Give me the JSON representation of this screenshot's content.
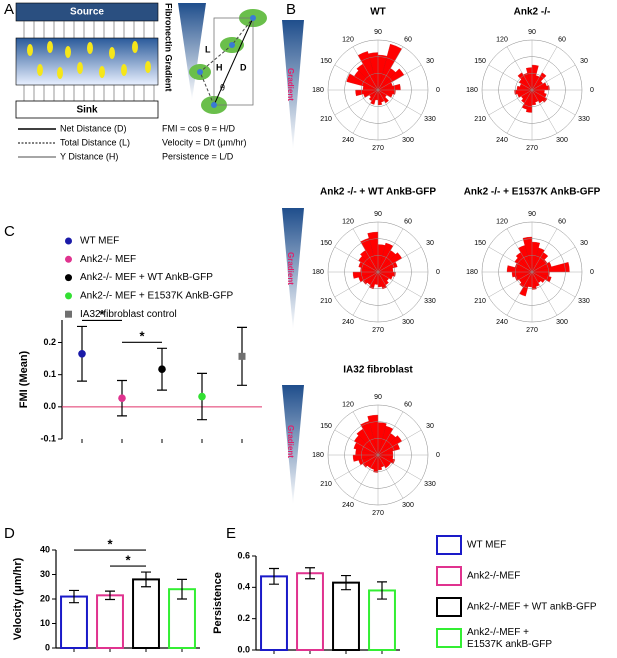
{
  "panel_labels": [
    "A",
    "B",
    "C",
    "D",
    "E"
  ],
  "diagram": {
    "source": "Source",
    "sink": "Sink",
    "gradient_label": "Fibronectin Gradient",
    "path_labels": [
      "L",
      "H",
      "D",
      "θ"
    ],
    "legend": [
      "Net Distance (D)",
      "Total Distance (L)",
      "Y Distance (H)"
    ],
    "formulas": [
      "FMI = cos θ = H/D",
      "Velocity = D/t (μm/hr)",
      "Persistence = L/D"
    ]
  },
  "gradient_labels": [
    "Gradient",
    "Gradient",
    "Gradient"
  ],
  "chart_data": [
    {
      "type": "rose",
      "title": "WT",
      "color": "#ff0000",
      "rlim": [
        0,
        1
      ],
      "thetaticks": [
        0,
        30,
        60,
        90,
        120,
        150,
        180,
        210,
        240,
        270,
        300,
        330
      ],
      "values": [
        0.45,
        0.3,
        0.6,
        0.5,
        0.95,
        0.7,
        0.75,
        0.8,
        0.6,
        0.55,
        0.65,
        0.3,
        0.45,
        0.3,
        0.2,
        0.25,
        0.3,
        0.2,
        0.3,
        0.25,
        0.3,
        0.2,
        0.3,
        0.35
      ]
    },
    {
      "type": "rose",
      "title": "Ank2 -/-",
      "color": "#ff0000",
      "rlim": [
        0,
        1
      ],
      "thetaticks": [
        0,
        30,
        60,
        90,
        120,
        150,
        180,
        210,
        240,
        270,
        300,
        330
      ],
      "values": [
        0.35,
        0.3,
        0.25,
        0.4,
        0.3,
        0.5,
        0.45,
        0.35,
        0.4,
        0.3,
        0.25,
        0.3,
        0.35,
        0.3,
        0.25,
        0.3,
        0.4,
        0.45,
        0.3,
        0.25,
        0.3,
        0.35,
        0.3,
        0.25
      ]
    },
    {
      "type": "rose",
      "title": "Ank2 -/- + WT AnkB-GFP",
      "color": "#ff0000",
      "rlim": [
        0,
        1
      ],
      "thetaticks": [
        0,
        30,
        60,
        90,
        120,
        150,
        180,
        210,
        240,
        270,
        300,
        330
      ],
      "values": [
        0.3,
        0.4,
        0.55,
        0.5,
        0.6,
        0.55,
        0.8,
        0.7,
        0.5,
        0.45,
        0.4,
        0.35,
        0.5,
        0.4,
        0.35,
        0.3,
        0.35,
        0.25,
        0.3,
        0.35,
        0.3,
        0.25,
        0.3,
        0.35
      ]
    },
    {
      "type": "rose",
      "title": "Ank2 -/- + E1537K AnkB-GFP",
      "color": "#ff0000",
      "rlim": [
        0,
        1
      ],
      "thetaticks": [
        0,
        30,
        60,
        90,
        120,
        150,
        180,
        210,
        240,
        270,
        300,
        330
      ],
      "values": [
        0.75,
        0.4,
        0.35,
        0.45,
        0.5,
        0.6,
        0.7,
        0.55,
        0.45,
        0.4,
        0.35,
        0.5,
        0.4,
        0.35,
        0.3,
        0.35,
        0.5,
        0.3,
        0.35,
        0.3,
        0.25,
        0.3,
        0.4,
        0.35
      ]
    },
    {
      "type": "rose",
      "title": "IA32 fibroblast",
      "color": "#ff0000",
      "rlim": [
        0,
        1
      ],
      "thetaticks": [
        0,
        30,
        60,
        90,
        120,
        150,
        180,
        210,
        240,
        270,
        300,
        330
      ],
      "values": [
        0.3,
        0.45,
        0.55,
        0.5,
        0.6,
        0.65,
        0.8,
        0.7,
        0.6,
        0.55,
        0.5,
        0.45,
        0.5,
        0.4,
        0.35,
        0.3,
        0.3,
        0.35,
        0.3,
        0.25,
        0.3,
        0.3,
        0.35,
        0.3
      ]
    },
    {
      "type": "dot",
      "ylabel": "FMI (Mean)",
      "categories": [
        "WT MEF",
        "Ank2-/- MEF",
        "Ank2-/- MEF + WT AnkB-GFP",
        "Ank2-/- MEF + E1537K AnkB-GFP",
        "IA32 fibroblast control"
      ],
      "colors": [
        "#1a1aa8",
        "#e0338f",
        "#000000",
        "#33e033",
        "#707070"
      ],
      "markers": [
        "circle",
        "circle",
        "circle",
        "circle",
        "square"
      ],
      "values": [
        0.165,
        0.027,
        0.117,
        0.032,
        0.157
      ],
      "errors": [
        0.085,
        0.055,
        0.065,
        0.072,
        0.09
      ],
      "ylim": [
        -0.1,
        0.27
      ],
      "yticks": [
        -0.1,
        {
          "value": 0,
          "label": "0.0"
        },
        0.1,
        0.2
      ],
      "zero_line_color": "#e0336a",
      "annotations": [
        {
          "from": 0,
          "to": 1,
          "text": "*"
        },
        {
          "from": 1,
          "to": 2,
          "text": "*"
        }
      ]
    },
    {
      "type": "bar",
      "ylabel": "Velocity (μm/hr)",
      "categories": [
        "WT MEF",
        "Ank2-/-MEF",
        "Ank2-/-MEF + WT ankB-GFP",
        "Ank2-/-MEF + E1537K ankB-GFP"
      ],
      "colors": [
        "#1a1ac8",
        "#e0338f",
        "#000000",
        "#33ee33"
      ],
      "values": [
        21,
        21.5,
        28,
        24
      ],
      "errors": [
        2.5,
        1.7,
        3,
        4
      ],
      "ylim": [
        0,
        40
      ],
      "yticks": [
        0,
        10,
        20,
        30,
        40
      ],
      "annotations": [
        {
          "from": 0,
          "to": 2,
          "text": "*"
        },
        {
          "from": 1,
          "to": 2,
          "text": "*"
        }
      ]
    },
    {
      "type": "bar",
      "ylabel": "Persistence",
      "categories": [
        null,
        null,
        null,
        null
      ],
      "colors": [
        "#1a1ac8",
        "#e0338f",
        "#000000",
        "#33ee33"
      ],
      "values": [
        0.47,
        0.49,
        0.43,
        0.38
      ],
      "errors": [
        0.05,
        0.035,
        0.045,
        0.055
      ],
      "ylim": [
        0,
        0.6
      ],
      "yticks": [
        {
          "value": 0,
          "label": "0.0"
        },
        0.2,
        0.4,
        0.6
      ],
      "annotations": []
    }
  ]
}
